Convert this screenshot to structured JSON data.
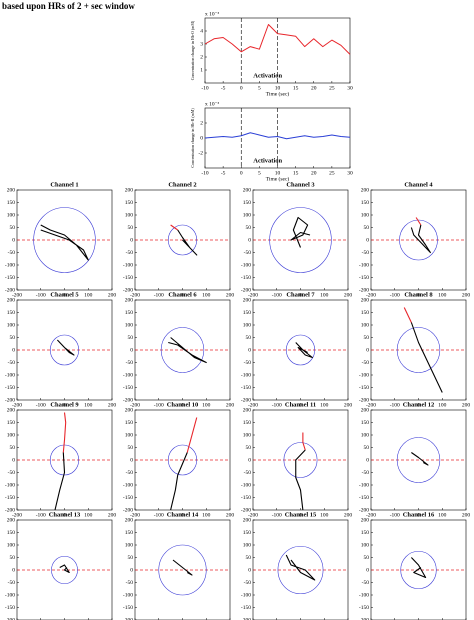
{
  "caption": "based upon HRs of 2 + sec window",
  "chart_data": [
    {
      "type": "line",
      "xlabel": "Time (sec)",
      "ylabel": "Concentration change in Hb-O (mM)",
      "y_multiplier": "x 10⁻³",
      "annotation": "Activation",
      "x": [
        -10,
        -7.5,
        -5,
        -2.5,
        0,
        2.5,
        5,
        7.5,
        10,
        12.5,
        15,
        17.5,
        20,
        22.5,
        25,
        27.5,
        30
      ],
      "series": [
        {
          "color": "#e8262b",
          "values": [
            3.0,
            3.4,
            3.5,
            3.0,
            2.4,
            2.8,
            2.6,
            4.5,
            3.8,
            3.7,
            3.6,
            2.8,
            3.4,
            2.8,
            3.3,
            2.9,
            2.2
          ]
        }
      ],
      "xlim": [
        -10,
        30
      ],
      "xticks": [
        -10,
        -5,
        0,
        5,
        10,
        15,
        20,
        25,
        30
      ],
      "ylim": [
        0,
        5
      ],
      "yticks": [
        1,
        2,
        3,
        4
      ],
      "vlines": [
        0,
        10
      ]
    },
    {
      "type": "line",
      "xlabel": "Time (sec)",
      "ylabel": "Concentration change in Hb-R (mM)",
      "y_multiplier": "x 10⁻³",
      "annotation": "Activation",
      "x": [
        -10,
        -7.5,
        -5,
        -2.5,
        0,
        2.5,
        5,
        7.5,
        10,
        12.5,
        15,
        17.5,
        20,
        22.5,
        25,
        27.5,
        30
      ],
      "series": [
        {
          "color": "#2a3fd6",
          "values": [
            0,
            0.1,
            0.2,
            0.1,
            0.3,
            0.7,
            0.4,
            0.1,
            0.2,
            -0.1,
            0.1,
            0.3,
            0.1,
            0.2,
            0.4,
            0.2,
            0.1
          ]
        }
      ],
      "xlim": [
        -10,
        30
      ],
      "xticks": [
        -10,
        -5,
        0,
        5,
        10,
        15,
        20,
        25,
        30
      ],
      "ylim": [
        -4,
        4
      ],
      "yticks": [
        -2,
        0,
        2
      ],
      "vlines": [
        0,
        10
      ]
    },
    {
      "type": "trajectory",
      "title": "Channel 1",
      "circle_radius": 130,
      "reference_line": 0,
      "series": [
        {
          "color": "#000",
          "x": [
            -100,
            -60,
            0,
            50,
            100,
            80,
            20,
            -40,
            -100
          ],
          "values": [
            60,
            40,
            20,
            -20,
            -80,
            -40,
            0,
            20,
            40
          ]
        }
      ],
      "xlim": [
        -200,
        200
      ],
      "xticks": [
        -200,
        -100,
        0,
        100,
        200
      ],
      "ylim": [
        -200,
        200
      ],
      "yticks": [
        -200,
        -150,
        -100,
        -50,
        0,
        50,
        100,
        150,
        200
      ]
    },
    {
      "type": "trajectory",
      "title": "Channel 2",
      "circle_radius": 60,
      "reference_line": 0,
      "series": [
        {
          "color": "#e8262b",
          "x": [
            -50,
            -20
          ],
          "values": [
            60,
            40
          ]
        },
        {
          "color": "#000",
          "x": [
            -20,
            0,
            30,
            60,
            40,
            0
          ],
          "values": [
            40,
            10,
            -30,
            -60,
            -40,
            0
          ]
        }
      ],
      "xlim": [
        -200,
        200
      ],
      "xticks": [
        -200,
        -100,
        0,
        100,
        200
      ],
      "ylim": [
        -200,
        200
      ],
      "yticks": [
        -200,
        -150,
        -100,
        -50,
        0,
        50,
        100,
        150,
        200
      ]
    },
    {
      "type": "trajectory",
      "title": "Channel 3",
      "circle_radius": 130,
      "reference_line": 0,
      "series": [
        {
          "color": "#000",
          "x": [
            0,
            -30,
            -10,
            30,
            10,
            -40,
            0,
            40
          ],
          "values": [
            -30,
            40,
            90,
            60,
            20,
            0,
            30,
            20
          ]
        }
      ],
      "xlim": [
        -200,
        200
      ],
      "xticks": [
        -200,
        -100,
        0,
        100,
        200
      ],
      "ylim": [
        -200,
        200
      ],
      "yticks": [
        -200,
        -150,
        -100,
        -50,
        0,
        50,
        100,
        150,
        200
      ]
    },
    {
      "type": "trajectory",
      "title": "Channel 4",
      "circle_radius": 80,
      "reference_line": 0,
      "series": [
        {
          "color": "#e8262b",
          "x": [
            -10,
            10
          ],
          "values": [
            90,
            60
          ]
        },
        {
          "color": "#000",
          "x": [
            10,
            0,
            30,
            50,
            10,
            -20,
            -30
          ],
          "values": [
            60,
            20,
            -20,
            -50,
            -10,
            20,
            50
          ]
        }
      ],
      "xlim": [
        -200,
        200
      ],
      "xticks": [
        -200,
        -100,
        0,
        100,
        200
      ],
      "ylim": [
        -200,
        200
      ],
      "yticks": [
        -200,
        -150,
        -100,
        -50,
        0,
        50,
        100,
        150,
        200
      ]
    },
    {
      "type": "trajectory",
      "title": "Channel 5",
      "circle_radius": 60,
      "reference_line": 0,
      "series": [
        {
          "color": "#000",
          "x": [
            -30,
            0,
            40,
            20,
            -10
          ],
          "values": [
            40,
            10,
            -20,
            -10,
            20
          ]
        }
      ],
      "xlim": [
        -200,
        200
      ],
      "xticks": [
        -200,
        -100,
        0,
        100,
        200
      ],
      "ylim": [
        -200,
        200
      ],
      "yticks": [
        -200,
        -150,
        -100,
        -50,
        0,
        50,
        100,
        150,
        200
      ]
    },
    {
      "type": "trajectory",
      "title": "Channel 6",
      "circle_radius": 90,
      "reference_line": 0,
      "series": [
        {
          "color": "#000",
          "x": [
            -50,
            0,
            50,
            100,
            40,
            -20,
            -60
          ],
          "values": [
            50,
            10,
            -30,
            -50,
            -20,
            20,
            30
          ]
        }
      ],
      "xlim": [
        -200,
        200
      ],
      "xticks": [
        -200,
        -100,
        0,
        100,
        200
      ],
      "ylim": [
        -200,
        200
      ],
      "yticks": [
        -200,
        -150,
        -100,
        -50,
        0,
        50,
        100,
        150,
        200
      ]
    },
    {
      "type": "trajectory",
      "title": "Channel 7",
      "circle_radius": 60,
      "reference_line": 0,
      "series": [
        {
          "color": "#000",
          "x": [
            -20,
            10,
            50,
            20,
            -10,
            30
          ],
          "values": [
            30,
            0,
            -30,
            -20,
            10,
            -10
          ]
        }
      ],
      "xlim": [
        -200,
        200
      ],
      "xticks": [
        -200,
        -100,
        0,
        100,
        200
      ],
      "ylim": [
        -200,
        200
      ],
      "yticks": [
        -200,
        -150,
        -100,
        -50,
        0,
        50,
        100,
        150,
        200
      ]
    },
    {
      "type": "trajectory",
      "title": "Channel 8",
      "circle_radius": 90,
      "reference_line": 0,
      "series": [
        {
          "color": "#e8262b",
          "x": [
            -60,
            -30
          ],
          "values": [
            170,
            110
          ]
        },
        {
          "color": "#000",
          "x": [
            -30,
            0,
            50,
            100
          ],
          "values": [
            110,
            30,
            -70,
            -170
          ]
        }
      ],
      "xlim": [
        -200,
        200
      ],
      "xticks": [
        -200,
        -100,
        0,
        100,
        200
      ],
      "ylim": [
        -200,
        200
      ],
      "yticks": [
        -200,
        -150,
        -100,
        -50,
        0,
        50,
        100,
        150,
        200
      ]
    },
    {
      "type": "trajectory",
      "title": "Channel 9",
      "circle_radius": 60,
      "reference_line": 0,
      "series": [
        {
          "color": "#e8262b",
          "x": [
            0,
            5,
            0,
            -5
          ],
          "values": [
            190,
            150,
            80,
            30
          ]
        },
        {
          "color": "#000",
          "x": [
            -5,
            0,
            -20,
            -40
          ],
          "values": [
            30,
            -50,
            -120,
            -200
          ]
        }
      ],
      "xlim": [
        -200,
        200
      ],
      "xticks": [
        -200,
        -100,
        0,
        100,
        200
      ],
      "ylim": [
        -200,
        200
      ],
      "yticks": [
        -200,
        -150,
        -100,
        -50,
        0,
        50,
        100,
        150,
        200
      ]
    },
    {
      "type": "trajectory",
      "title": "Channel 10",
      "circle_radius": 60,
      "reference_line": 0,
      "series": [
        {
          "color": "#e8262b",
          "x": [
            60,
            40,
            20
          ],
          "values": [
            170,
            100,
            30
          ]
        },
        {
          "color": "#000",
          "x": [
            20,
            -20,
            -30,
            -50
          ],
          "values": [
            30,
            -60,
            -120,
            -200
          ]
        }
      ],
      "xlim": [
        -200,
        200
      ],
      "xticks": [
        -200,
        -100,
        0,
        100,
        200
      ],
      "ylim": [
        -200,
        200
      ],
      "yticks": [
        -200,
        -150,
        -100,
        -50,
        0,
        50,
        100,
        150,
        200
      ]
    },
    {
      "type": "trajectory",
      "title": "Channel 11",
      "circle_radius": 70,
      "reference_line": 0,
      "series": [
        {
          "color": "#e8262b",
          "x": [
            10,
            10,
            20
          ],
          "values": [
            110,
            70,
            40
          ]
        },
        {
          "color": "#000",
          "x": [
            20,
            -20,
            -20,
            0,
            10
          ],
          "values": [
            40,
            0,
            -70,
            -120,
            -200
          ]
        }
      ],
      "xlim": [
        -200,
        200
      ],
      "xticks": [
        -200,
        -100,
        0,
        100,
        200
      ],
      "ylim": [
        -200,
        200
      ],
      "yticks": [
        -200,
        -150,
        -100,
        -50,
        0,
        50,
        100,
        150,
        200
      ]
    },
    {
      "type": "trajectory",
      "title": "Channel 12",
      "circle_radius": 90,
      "reference_line": 0,
      "series": [
        {
          "color": "#000",
          "x": [
            -30,
            0,
            40,
            20
          ],
          "values": [
            30,
            10,
            -20,
            -10
          ]
        }
      ],
      "xlim": [
        -200,
        200
      ],
      "xticks": [
        -200,
        -100,
        0,
        100,
        200
      ],
      "ylim": [
        -200,
        200
      ],
      "yticks": [
        -200,
        -150,
        -100,
        -50,
        0,
        50,
        100,
        150,
        200
      ]
    },
    {
      "type": "trajectory",
      "title": "Channel 13",
      "circle_radius": 55,
      "reference_line": 0,
      "series": [
        {
          "color": "#000",
          "x": [
            -20,
            0,
            20,
            0,
            10
          ],
          "values": [
            10,
            20,
            -10,
            0,
            10
          ]
        }
      ],
      "xlim": [
        -200,
        200
      ],
      "xticks": [
        -200,
        -100,
        0,
        100,
        200
      ],
      "ylim": [
        -200,
        200
      ],
      "yticks": [
        -200,
        -150,
        -100,
        -50,
        0,
        50,
        100,
        150,
        200
      ]
    },
    {
      "type": "trajectory",
      "title": "Channel 14",
      "circle_radius": 100,
      "reference_line": 0,
      "series": [
        {
          "color": "#000",
          "x": [
            -40,
            0,
            40,
            20
          ],
          "values": [
            40,
            10,
            -20,
            -10
          ]
        }
      ],
      "xlim": [
        -200,
        200
      ],
      "xticks": [
        -200,
        -100,
        0,
        100,
        200
      ],
      "ylim": [
        -200,
        200
      ],
      "yticks": [
        -200,
        -150,
        -100,
        -50,
        0,
        50,
        100,
        150,
        200
      ]
    },
    {
      "type": "trajectory",
      "title": "Channel 15",
      "circle_radius": 95,
      "reference_line": 0,
      "series": [
        {
          "color": "#000",
          "x": [
            -60,
            -40,
            20,
            60,
            0,
            -40
          ],
          "values": [
            60,
            20,
            0,
            -40,
            -10,
            40
          ]
        }
      ],
      "xlim": [
        -200,
        200
      ],
      "xticks": [
        -200,
        -100,
        0,
        100,
        200
      ],
      "ylim": [
        -200,
        200
      ],
      "yticks": [
        -200,
        -150,
        -100,
        -50,
        0,
        50,
        100,
        150,
        200
      ]
    },
    {
      "type": "trajectory",
      "title": "Channel 16",
      "circle_radius": 75,
      "reference_line": 0,
      "series": [
        {
          "color": "#000",
          "x": [
            -30,
            0,
            30,
            -20,
            10
          ],
          "values": [
            50,
            20,
            -30,
            -10,
            10
          ]
        }
      ],
      "xlim": [
        -200,
        200
      ],
      "xticks": [
        -200,
        -100,
        0,
        100,
        200
      ],
      "ylim": [
        -200,
        200
      ],
      "yticks": [
        -200,
        -150,
        -100,
        -50,
        0,
        50,
        100,
        150,
        200
      ]
    }
  ]
}
